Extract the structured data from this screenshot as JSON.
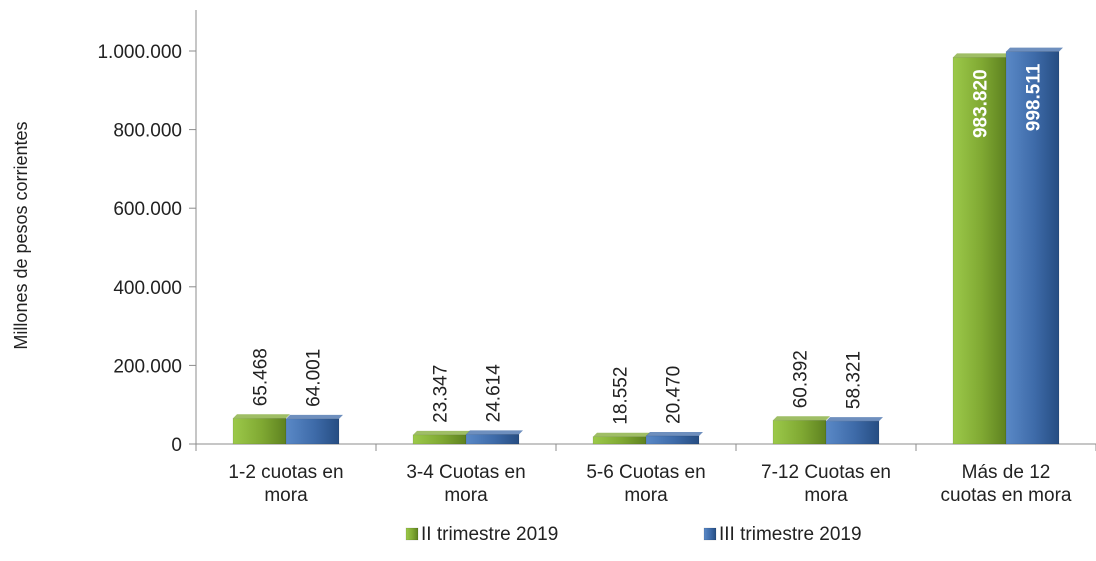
{
  "chart_data": {
    "type": "bar",
    "title": "",
    "ylabel": "Millones de pesos corrientes",
    "xlabel": "",
    "categories": [
      [
        "1-2 cuotas en",
        "mora"
      ],
      [
        "3-4 Cuotas en",
        "mora"
      ],
      [
        "5-6 Cuotas en",
        "mora"
      ],
      [
        "7-12 Cuotas en",
        "mora"
      ],
      [
        "Más de 12",
        "cuotas en mora"
      ]
    ],
    "series": [
      {
        "name": "II trimestre 2019",
        "values": [
          65468,
          23347,
          18552,
          60392,
          983820
        ],
        "labels": [
          "65.468",
          "23.347",
          "18.552",
          "60.392",
          "983.820"
        ],
        "color": "#7fa832"
      },
      {
        "name": "III trimestre 2019",
        "values": [
          64001,
          24614,
          20470,
          58321,
          998511
        ],
        "labels": [
          "64.001",
          "24.614",
          "20.470",
          "58.321",
          "998.511"
        ],
        "color": "#3d6aa8"
      }
    ],
    "ylim": [
      0,
      1000000
    ],
    "yticks": [
      "0",
      "200.000",
      "400.000",
      "600.000",
      "800.000",
      "1.000.000"
    ],
    "grid": false,
    "legend": "bottom"
  }
}
